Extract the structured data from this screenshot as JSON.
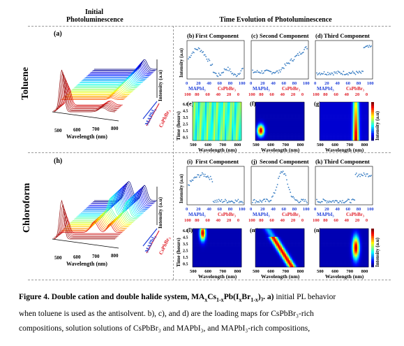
{
  "headers": {
    "initial_line1": "Initial",
    "initial_line2": "Photoluminescence",
    "time_evolution": "Time Evolution of Photoluminescence"
  },
  "rows": {
    "toluene": "Toluene",
    "chloroform": "Chloroform"
  },
  "labels": {
    "a": "(a)",
    "h": "(h)",
    "b": "(b)",
    "c": "(c)",
    "d": "(d)",
    "e": "(e)",
    "f": "(f)",
    "g": "(g)",
    "i": "(i)",
    "j": "(j)",
    "k": "(k)",
    "l": "(l)",
    "m": "(m)",
    "n": "(n)"
  },
  "components": {
    "first": "First Component",
    "second": "Second Component",
    "third": "Third Component"
  },
  "axes": {
    "intensity_au": "Intensity (a.u)",
    "wavelength_nm": "Wavelength (nm)",
    "time_hours": "Time (hours)",
    "intensity_cbar": "Intensity (a.u)",
    "mapbi3": "MAPbI₃",
    "cspbbr3": "CsPbBr₃"
  },
  "ticks": {
    "top": [
      "0",
      "20",
      "40",
      "60",
      "80",
      "100"
    ],
    "bottom": [
      "100",
      "80",
      "60",
      "40",
      "20",
      "0"
    ],
    "wl_e": [
      "500",
      "600",
      "700",
      "800"
    ],
    "wl_f": [
      "500",
      "600",
      "700",
      "800"
    ],
    "wl_g": [
      "500",
      "600",
      "700",
      "800"
    ],
    "wl_3d": [
      "500",
      "600",
      "700",
      "800"
    ],
    "time": [
      "6.0",
      "4.5",
      "3.5",
      "2.5",
      "1.5",
      "0.5"
    ]
  },
  "caption": {
    "fig": "Figure 4",
    "title": ". Double cation and double halide system, MA",
    "title_x": "x",
    "title_cs": "Cs",
    "title_1x": "1-x",
    "title_pb": "Pb(I",
    "title_xb": "x",
    "title_br": "Br",
    "title_1xb": "1-x",
    "title_end": ")₃. a)",
    "line1_rest": " initial PL behavior",
    "line2": "when toluene is used as the antisolvent. b), c), and d) are the loading maps for CsPbBr₃-rich",
    "line3": "compositions, solution solutions of CsPbBr₃ and MAPbI₃, and MAPbI₃-rich compositions,"
  },
  "colors": {
    "mapbi3": "#1f3fd9",
    "cspbbr3": "#e0202a",
    "scatter": "#3b7fc4"
  }
}
